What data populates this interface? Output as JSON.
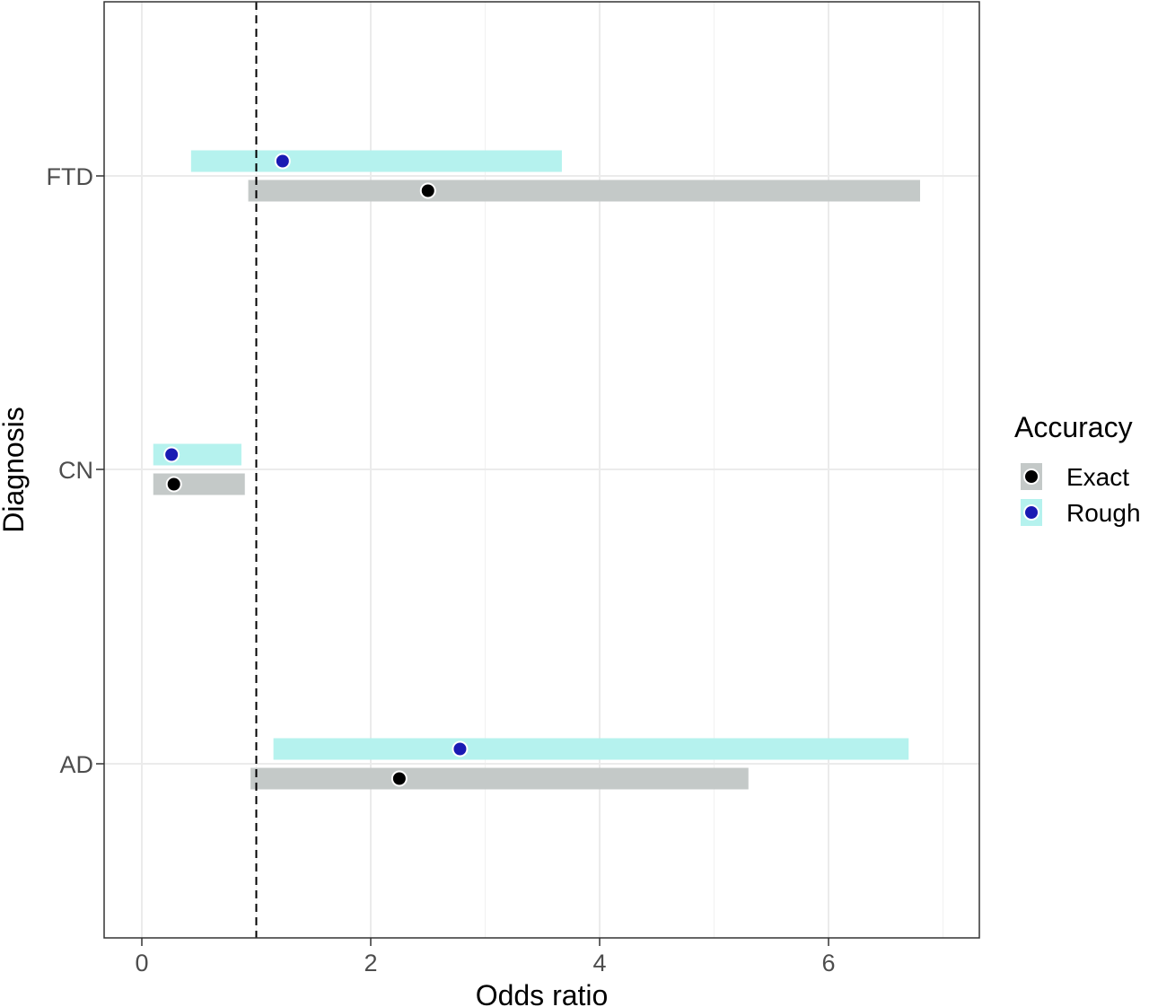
{
  "chart_data": {
    "type": "forest",
    "xlabel": "Odds ratio",
    "ylabel": "Diagnosis",
    "xlim": [
      -0.35,
      7.3
    ],
    "x_ticks": [
      0,
      2,
      4,
      6
    ],
    "x_minor_ticks": [
      1,
      3,
      5,
      7
    ],
    "reference_line": {
      "x": 1,
      "style": "dashed"
    },
    "categories": [
      "AD",
      "CN",
      "FTD"
    ],
    "legend": {
      "title": "Accuracy",
      "placement": "right",
      "items": [
        {
          "label": "Exact",
          "bar_color": "#c4c9c8",
          "dot_color": "#000000"
        },
        {
          "label": "Rough",
          "bar_color": "#b5f2ee",
          "dot_color": "#1a1ab3"
        }
      ]
    },
    "series": [
      {
        "name": "Exact",
        "bar_color": "#c4c9c8",
        "dot_color": "#000000",
        "points": [
          {
            "category": "AD",
            "estimate": 2.25,
            "lower": 0.95,
            "upper": 5.3
          },
          {
            "category": "CN",
            "estimate": 0.28,
            "lower": 0.1,
            "upper": 0.9
          },
          {
            "category": "FTD",
            "estimate": 2.5,
            "lower": 0.93,
            "upper": 6.8
          }
        ]
      },
      {
        "name": "Rough",
        "bar_color": "#b5f2ee",
        "dot_color": "#1a1ab3",
        "points": [
          {
            "category": "AD",
            "estimate": 2.78,
            "lower": 1.15,
            "upper": 6.7
          },
          {
            "category": "CN",
            "estimate": 0.26,
            "lower": 0.1,
            "upper": 0.87
          },
          {
            "category": "FTD",
            "estimate": 1.23,
            "lower": 0.43,
            "upper": 3.67
          }
        ]
      }
    ]
  }
}
